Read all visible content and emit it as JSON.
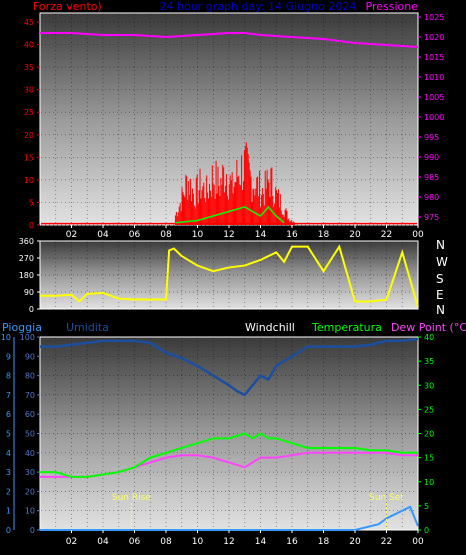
{
  "header": {
    "left": "Forza vento)",
    "center": "24 hour graph day: 14 Giugno 2024",
    "right": "Pressione"
  },
  "colors": {
    "wind": "#ff0000",
    "gust_green": "#00ff00",
    "pressure": "#ff00ff",
    "title": "#0000cc",
    "direction": "#ffff00",
    "rain": "#3399ff",
    "humidity": "#1a4fa0",
    "temperature": "#00ff00",
    "dewpoint": "#ff44ff",
    "windchill": "#ffffff"
  },
  "legend": {
    "rain": "Pioggia",
    "humidity": "Umidita",
    "windchill": "Windchill",
    "temperature": "Temperatura",
    "dewpoint": "Dew Point (°C)"
  },
  "compass_labels": [
    "N",
    "W",
    "S",
    "E",
    "N"
  ],
  "annotations": {
    "sunrise": "Sun Rise",
    "sunset": "Sun Set"
  },
  "time_ticks": [
    "02",
    "04",
    "06",
    "08",
    "10",
    "12",
    "14",
    "16",
    "18",
    "20",
    "22",
    "00"
  ],
  "chart_data": [
    {
      "type": "bar",
      "id": "wind",
      "series_label": "Forza vento",
      "yleft_ticks": [
        0,
        5,
        10,
        15,
        20,
        25,
        30,
        35,
        40,
        45
      ],
      "yleft_range": [
        0,
        47
      ],
      "yright_ticks": [
        975,
        980,
        985,
        990,
        995,
        1000,
        1005,
        1010,
        1015,
        1020,
        1025
      ],
      "yright_range": [
        973,
        1026
      ],
      "pressure": {
        "x": [
          0,
          2,
          4,
          6,
          8,
          10,
          12,
          13,
          14,
          16,
          18,
          20,
          22,
          24
        ],
        "y": [
          1021,
          1021,
          1020.5,
          1020.5,
          1020,
          1020.5,
          1021,
          1021,
          1020.5,
          1020,
          1019.5,
          1018.5,
          1018,
          1017.5
        ]
      },
      "wind_samples": {
        "x": [
          8.6,
          9.0,
          9.4,
          9.8,
          10.2,
          10.6,
          11.0,
          11.4,
          11.8,
          12.2,
          12.6,
          13.0,
          13.4,
          13.8,
          14.2,
          14.6,
          15.0,
          15.4,
          15.8,
          16.2
        ],
        "y": [
          3,
          8,
          14,
          9,
          12,
          10,
          15,
          12,
          17,
          11,
          16,
          18,
          14,
          12,
          10,
          14,
          9,
          6,
          2,
          1
        ]
      },
      "gust_green": {
        "x": [
          8.6,
          10,
          11,
          12,
          13,
          13.5,
          14,
          14.5,
          15,
          15.5
        ],
        "y": [
          0.5,
          1,
          2,
          3,
          4,
          3,
          2,
          4,
          2,
          0.5
        ]
      },
      "baseline_wind": 0.3
    },
    {
      "type": "line",
      "id": "direction",
      "yticks": [
        0,
        90,
        180,
        270,
        360
      ],
      "yrange": [
        0,
        360
      ],
      "x": [
        0,
        1,
        2,
        2.5,
        3,
        4,
        5,
        6,
        7,
        8,
        8.2,
        8.5,
        9,
        10,
        11,
        12,
        13,
        14,
        15,
        15.5,
        16,
        17,
        18,
        19,
        20,
        21,
        22,
        23,
        24
      ],
      "y": [
        70,
        70,
        75,
        40,
        80,
        85,
        55,
        50,
        50,
        50,
        310,
        320,
        280,
        230,
        200,
        220,
        230,
        260,
        300,
        250,
        330,
        330,
        200,
        330,
        40,
        40,
        50,
        300,
        10
      ]
    },
    {
      "type": "line",
      "id": "temp_hum",
      "left_rain_ticks": [
        0,
        1,
        2,
        3,
        4,
        5,
        6,
        7,
        8,
        9,
        10
      ],
      "left_hum_ticks": [
        0,
        10,
        20,
        30,
        40,
        50,
        60,
        70,
        80,
        90,
        100
      ],
      "right_temp_ticks": [
        0,
        5,
        10,
        15,
        20,
        25,
        30,
        35,
        40
      ],
      "humidity": {
        "x": [
          0,
          1,
          2,
          3,
          4,
          5,
          6,
          7,
          8,
          9,
          10,
          11,
          12,
          12.5,
          13,
          13.5,
          14,
          14.5,
          15,
          16,
          17,
          18,
          19,
          20,
          21,
          22,
          23,
          24
        ],
        "y": [
          95,
          95,
          96,
          97,
          98,
          98,
          98,
          97,
          92,
          89,
          85,
          80,
          75,
          72,
          70,
          75,
          80,
          78,
          85,
          90,
          95,
          95,
          95,
          95,
          96,
          98,
          98,
          99
        ]
      },
      "temperature": {
        "x": [
          0,
          1,
          2,
          3,
          4,
          5,
          6,
          7,
          8,
          9,
          10,
          11,
          12,
          13,
          13.5,
          14,
          14.5,
          15,
          16,
          17,
          18,
          19,
          20,
          21,
          22,
          23,
          24
        ],
        "y": [
          12,
          12,
          11,
          11,
          11.5,
          12,
          13,
          15,
          16,
          17,
          18,
          19,
          19,
          20,
          19,
          20,
          19,
          19,
          18,
          17,
          17,
          17,
          17,
          16.5,
          16.5,
          16,
          16
        ]
      },
      "dewpoint": {
        "x": [
          0,
          1,
          2,
          3,
          4,
          5,
          6,
          7,
          8,
          9,
          10,
          11,
          12,
          13,
          14,
          15,
          16,
          17,
          18,
          19,
          20,
          21,
          22,
          23,
          24
        ],
        "y": [
          11,
          11,
          11,
          11,
          11.5,
          12,
          13,
          14,
          15,
          15.5,
          15.5,
          15,
          14,
          13,
          15,
          15,
          15.5,
          16,
          16,
          16,
          16,
          16,
          16,
          15.5,
          15.5
        ]
      },
      "rain": {
        "x": [
          0,
          5,
          10,
          15,
          20,
          21.5,
          22,
          23,
          23.5,
          24
        ],
        "y": [
          0,
          0,
          0,
          0,
          0,
          0.3,
          0.6,
          1.0,
          1.2,
          0.2
        ]
      },
      "sunrise_hour": 5.8,
      "sunset_hour": 22.0
    }
  ]
}
